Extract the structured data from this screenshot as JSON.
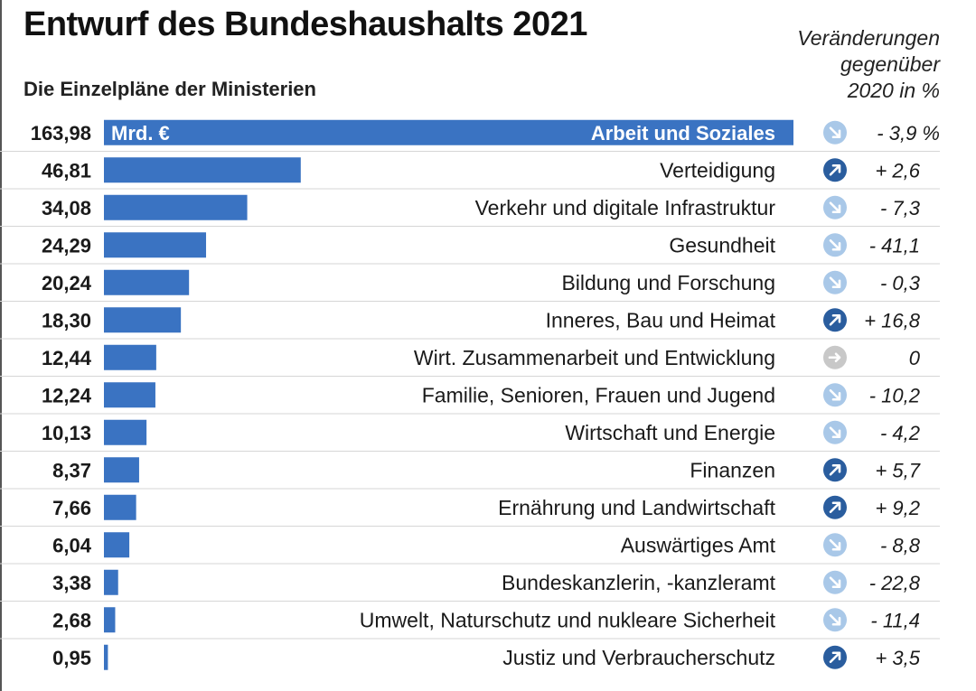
{
  "title": "Entwurf des Bundeshaushalts 2021",
  "subtitle": "Die Einzelpläne der Ministerien",
  "change_header": [
    "Veränderungen",
    "gegenüber",
    "2020 in %"
  ],
  "colors": {
    "bar": "#3a73c2",
    "arrow_up": "#2a5d9e",
    "arrow_down": "#a9c8e8",
    "arrow_flat": "#c8c8c8",
    "divider": "#d6d6d6"
  },
  "chart_data": {
    "type": "bar",
    "orientation": "horizontal",
    "unit": "Mrd. €",
    "categories": [
      "Arbeit und Soziales",
      "Verteidigung",
      "Verkehr und digitale Infrastruktur",
      "Gesundheit",
      "Bildung und Forschung",
      "Inneres, Bau und Heimat",
      "Wirt. Zusammenarbeit und Entwicklung",
      "Familie, Senioren, Frauen und Jugend",
      "Wirtschaft und Energie",
      "Finanzen",
      "Ernährung und Landwirtschaft",
      "Auswärtiges Amt",
      "Bundeskanzlerin, -kanzleramt",
      "Umwelt, Naturschutz und nukleare Sicherheit",
      "Justiz und Verbraucherschutz"
    ],
    "values": [
      163.98,
      46.81,
      34.08,
      24.29,
      20.24,
      18.3,
      12.44,
      12.24,
      10.13,
      8.37,
      7.66,
      6.04,
      3.38,
      2.68,
      0.95
    ],
    "value_labels": [
      "163,98",
      "46,81",
      "34,08",
      "24,29",
      "20,24",
      "18,30",
      "12,44",
      "12,24",
      "10,13",
      "8,37",
      "7,66",
      "6,04",
      "3,38",
      "2,68",
      "0,95"
    ],
    "changes": [
      -3.9,
      2.6,
      -7.3,
      -41.1,
      -0.3,
      16.8,
      0,
      -10.2,
      -4.2,
      5.7,
      9.2,
      -8.8,
      -22.8,
      -11.4,
      3.5
    ],
    "change_labels": [
      "- 3,9 %",
      "+ 2,6",
      "- 7,3",
      "- 41,1",
      "- 0,3",
      "+ 16,8",
      "0",
      "- 10,2",
      "- 4,2",
      "+ 5,7",
      "+ 9,2",
      "- 8,8",
      "- 22,8",
      "- 11,4",
      "+ 3,5"
    ],
    "direction_icons": [
      "arrow-down-icon",
      "arrow-up-icon",
      "arrow-down-icon",
      "arrow-down-icon",
      "arrow-down-icon",
      "arrow-up-icon",
      "arrow-right-icon",
      "arrow-down-icon",
      "arrow-down-icon",
      "arrow-up-icon",
      "arrow-up-icon",
      "arrow-down-icon",
      "arrow-down-icon",
      "arrow-down-icon",
      "arrow-up-icon"
    ],
    "xlim": [
      0,
      163.98
    ]
  }
}
